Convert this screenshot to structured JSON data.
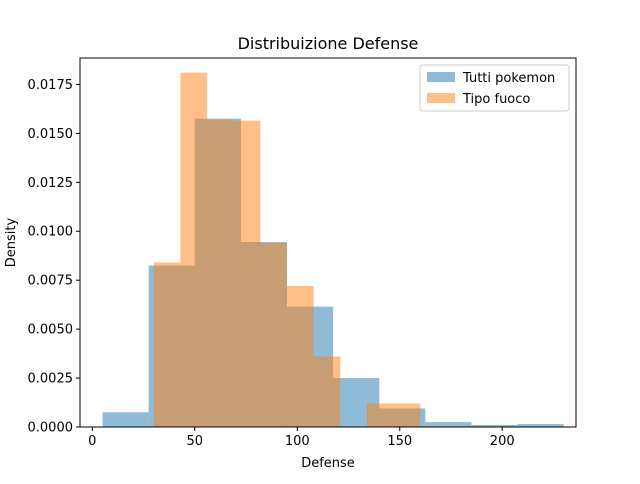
{
  "chart_data": {
    "type": "histogram",
    "title": "Distribuizione Defense",
    "xlabel": "Defense",
    "ylabel": "Density",
    "xlim": [
      -6,
      236
    ],
    "ylim": [
      0,
      0.01885
    ],
    "xticks": [
      0,
      50,
      100,
      150,
      200
    ],
    "yticks": [
      0.0,
      0.0025,
      0.005,
      0.0075,
      0.01,
      0.0125,
      0.015,
      0.0175
    ],
    "ytick_labels": [
      "0.0000",
      "0.0025",
      "0.0050",
      "0.0075",
      "0.0100",
      "0.0125",
      "0.0150",
      "0.0175"
    ],
    "legend_position": "upper right",
    "series": [
      {
        "name": "Tutti pokemon",
        "color": "#1f77b4",
        "alpha": 0.5,
        "bins": [
          {
            "x0": 5,
            "x1": 27.5,
            "y": 0.00075
          },
          {
            "x0": 27.5,
            "x1": 50,
            "y": 0.00825
          },
          {
            "x0": 50,
            "x1": 72.5,
            "y": 0.01575
          },
          {
            "x0": 72.5,
            "x1": 95,
            "y": 0.00945
          },
          {
            "x0": 95,
            "x1": 117.5,
            "y": 0.00615
          },
          {
            "x0": 117.5,
            "x1": 140,
            "y": 0.0025
          },
          {
            "x0": 140,
            "x1": 162.5,
            "y": 0.00095
          },
          {
            "x0": 162.5,
            "x1": 185,
            "y": 0.00025
          },
          {
            "x0": 185,
            "x1": 207.5,
            "y": 0.0001
          },
          {
            "x0": 207.5,
            "x1": 230,
            "y": 0.00015
          }
        ]
      },
      {
        "name": "Tipo fuoco",
        "color": "#ff7f0e",
        "alpha": 0.5,
        "bins": [
          {
            "x0": 30,
            "x1": 43,
            "y": 0.0084
          },
          {
            "x0": 43,
            "x1": 56,
            "y": 0.0181
          },
          {
            "x0": 56,
            "x1": 69,
            "y": 0.0157
          },
          {
            "x0": 69,
            "x1": 82,
            "y": 0.01565
          },
          {
            "x0": 82,
            "x1": 95,
            "y": 0.0094
          },
          {
            "x0": 95,
            "x1": 108,
            "y": 0.0072
          },
          {
            "x0": 108,
            "x1": 121,
            "y": 0.0036
          },
          {
            "x0": 121,
            "x1": 134,
            "y": 0.0
          },
          {
            "x0": 134,
            "x1": 147,
            "y": 0.0012
          },
          {
            "x0": 147,
            "x1": 160,
            "y": 0.0012
          }
        ]
      }
    ]
  }
}
